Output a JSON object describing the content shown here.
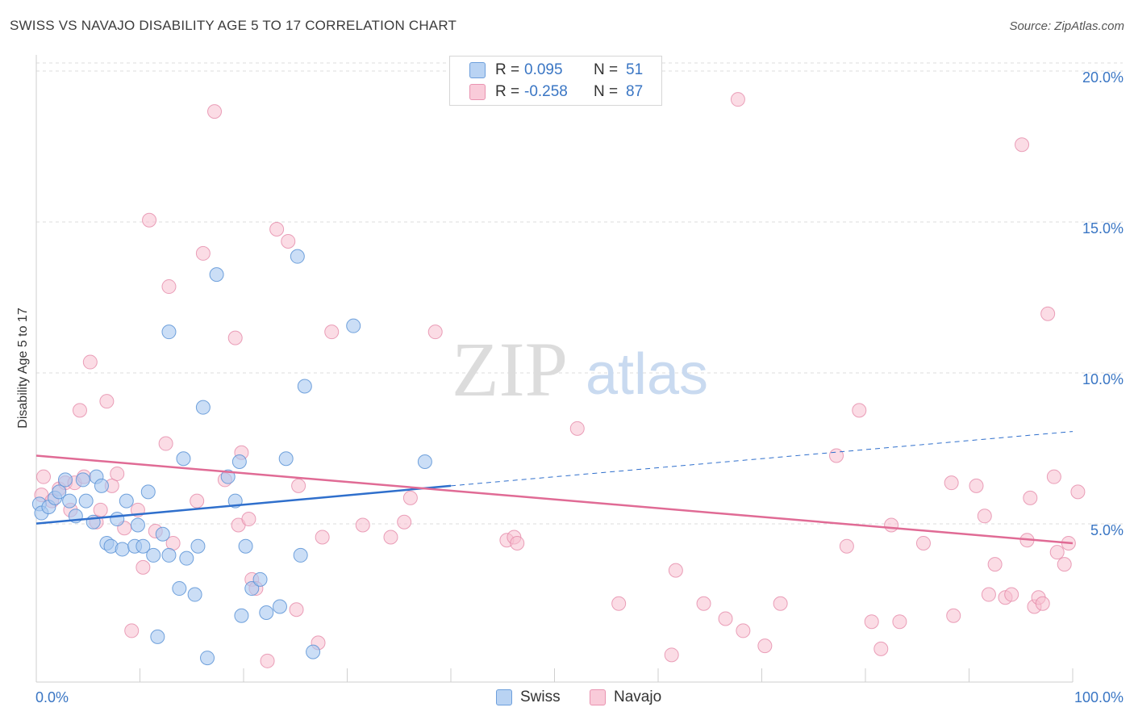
{
  "header": {
    "title": "SWISS VS NAVAJO DISABILITY AGE 5 TO 17 CORRELATION CHART",
    "source": "Source: ZipAtlas.com"
  },
  "watermark": {
    "zip": "ZIP",
    "atlas": "atlas"
  },
  "legend": {
    "series": [
      {
        "r_label": "R =",
        "r_value": "0.095",
        "n_label": "N =",
        "n_value": "51"
      },
      {
        "r_label": "R =",
        "r_value": "-0.258",
        "n_label": "N =",
        "n_value": "87"
      }
    ],
    "bottom": [
      "Swiss",
      "Navajo"
    ]
  },
  "colors": {
    "swiss_fill": "#a9c8f0",
    "swiss_stroke": "#5b93d6",
    "swiss_line": "#2f6fcc",
    "navajo_fill": "#f7bfd0",
    "navajo_stroke": "#e58aa9",
    "navajo_line": "#e06b95",
    "axis_label": "#3a76c4",
    "grid": "#dddddd"
  },
  "chart_data": {
    "type": "scatter",
    "ylabel": "Disability Age 5 to 17",
    "xlabel": "",
    "xlim": [
      0,
      100
    ],
    "ylim": [
      0,
      20
    ],
    "x_tick_labels": [
      "0.0%",
      "100.0%"
    ],
    "y_ticks": [
      5,
      10,
      15,
      20
    ],
    "y_tick_labels": [
      "5.0%",
      "10.0%",
      "15.0%",
      "20.0%"
    ],
    "grid": "dashed horizontal",
    "legend_position": "top-center",
    "series": [
      {
        "name": "Swiss",
        "R": 0.095,
        "N": 51,
        "trend": {
          "x0": 0,
          "y0": 5.25,
          "x1": 40,
          "y1": 6.5,
          "dashed_to_x": 100,
          "dashed_to_y": 8.3
        },
        "points": [
          [
            0.3,
            5.9
          ],
          [
            0.5,
            5.6
          ],
          [
            1.2,
            5.8
          ],
          [
            1.8,
            6.1
          ],
          [
            2.2,
            6.3
          ],
          [
            2.8,
            6.7
          ],
          [
            3.2,
            6.0
          ],
          [
            3.8,
            5.5
          ],
          [
            4.5,
            6.7
          ],
          [
            4.8,
            6.0
          ],
          [
            5.5,
            5.3
          ],
          [
            5.8,
            6.8
          ],
          [
            6.3,
            6.5
          ],
          [
            6.8,
            4.6
          ],
          [
            7.2,
            4.5
          ],
          [
            7.8,
            5.4
          ],
          [
            8.3,
            4.4
          ],
          [
            8.7,
            6.0
          ],
          [
            9.5,
            4.5
          ],
          [
            9.8,
            5.2
          ],
          [
            10.3,
            4.5
          ],
          [
            10.8,
            6.3
          ],
          [
            11.3,
            4.2
          ],
          [
            11.7,
            1.5
          ],
          [
            12.2,
            4.9
          ],
          [
            12.8,
            4.2
          ],
          [
            12.8,
            11.6
          ],
          [
            13.8,
            3.1
          ],
          [
            14.2,
            7.4
          ],
          [
            14.5,
            4.1
          ],
          [
            15.3,
            2.9
          ],
          [
            15.6,
            4.5
          ],
          [
            16.1,
            9.1
          ],
          [
            16.5,
            0.8
          ],
          [
            17.4,
            13.5
          ],
          [
            18.5,
            6.8
          ],
          [
            19.2,
            6.0
          ],
          [
            19.6,
            7.3
          ],
          [
            19.8,
            2.2
          ],
          [
            20.2,
            4.5
          ],
          [
            20.8,
            3.1
          ],
          [
            21.6,
            3.4
          ],
          [
            22.2,
            2.3
          ],
          [
            23.5,
            2.5
          ],
          [
            24.1,
            7.4
          ],
          [
            25.2,
            14.1
          ],
          [
            25.5,
            4.2
          ],
          [
            25.9,
            9.8
          ],
          [
            26.7,
            1.0
          ],
          [
            30.6,
            11.8
          ],
          [
            37.5,
            7.3
          ]
        ]
      },
      {
        "name": "Navajo",
        "R": -0.258,
        "N": 87,
        "trend": {
          "x0": 0,
          "y0": 7.5,
          "x1": 100,
          "y1": 4.6
        },
        "points": [
          [
            0.5,
            6.2
          ],
          [
            0.7,
            6.8
          ],
          [
            1.5,
            6.0
          ],
          [
            2.2,
            6.4
          ],
          [
            2.8,
            6.6
          ],
          [
            3.3,
            5.7
          ],
          [
            3.7,
            6.6
          ],
          [
            4.2,
            9.0
          ],
          [
            4.6,
            6.8
          ],
          [
            5.2,
            10.6
          ],
          [
            5.8,
            5.3
          ],
          [
            6.2,
            5.7
          ],
          [
            6.8,
            9.3
          ],
          [
            7.3,
            6.5
          ],
          [
            7.8,
            6.9
          ],
          [
            8.5,
            5.1
          ],
          [
            9.2,
            1.7
          ],
          [
            9.8,
            5.7
          ],
          [
            10.3,
            3.8
          ],
          [
            10.9,
            15.3
          ],
          [
            11.5,
            5.0
          ],
          [
            12.5,
            7.9
          ],
          [
            12.8,
            13.1
          ],
          [
            13.2,
            4.6
          ],
          [
            15.5,
            6.0
          ],
          [
            16.1,
            14.2
          ],
          [
            17.2,
            18.9
          ],
          [
            18.2,
            6.7
          ],
          [
            19.2,
            11.4
          ],
          [
            19.5,
            5.2
          ],
          [
            19.8,
            7.6
          ],
          [
            20.5,
            5.4
          ],
          [
            20.8,
            3.4
          ],
          [
            21.2,
            3.1
          ],
          [
            22.3,
            0.7
          ],
          [
            23.2,
            15.0
          ],
          [
            24.3,
            14.6
          ],
          [
            25.1,
            2.4
          ],
          [
            25.3,
            6.5
          ],
          [
            27.2,
            1.3
          ],
          [
            27.6,
            4.8
          ],
          [
            28.5,
            11.6
          ],
          [
            31.5,
            5.2
          ],
          [
            34.2,
            4.8
          ],
          [
            35.5,
            5.3
          ],
          [
            36.1,
            6.1
          ],
          [
            38.5,
            11.6
          ],
          [
            45.4,
            4.7
          ],
          [
            46.1,
            4.8
          ],
          [
            46.4,
            4.6
          ],
          [
            52.2,
            8.4
          ],
          [
            56.2,
            2.6
          ],
          [
            61.3,
            0.9
          ],
          [
            61.7,
            3.7
          ],
          [
            64.4,
            2.6
          ],
          [
            66.5,
            2.1
          ],
          [
            67.7,
            19.3
          ],
          [
            68.2,
            1.7
          ],
          [
            70.3,
            1.2
          ],
          [
            71.8,
            2.6
          ],
          [
            77.2,
            7.5
          ],
          [
            78.2,
            4.5
          ],
          [
            79.4,
            9.0
          ],
          [
            80.6,
            2.0
          ],
          [
            81.5,
            1.1
          ],
          [
            82.5,
            5.2
          ],
          [
            83.3,
            2.0
          ],
          [
            85.6,
            4.6
          ],
          [
            88.3,
            6.6
          ],
          [
            88.5,
            2.2
          ],
          [
            90.7,
            6.5
          ],
          [
            91.5,
            5.5
          ],
          [
            91.9,
            2.9
          ],
          [
            92.5,
            3.9
          ],
          [
            93.5,
            2.8
          ],
          [
            94.1,
            2.9
          ],
          [
            95.1,
            17.8
          ],
          [
            95.6,
            4.7
          ],
          [
            95.9,
            6.1
          ],
          [
            96.3,
            2.5
          ],
          [
            96.7,
            2.8
          ],
          [
            97.1,
            2.6
          ],
          [
            97.6,
            12.2
          ],
          [
            98.2,
            6.8
          ],
          [
            98.5,
            4.3
          ],
          [
            99.2,
            3.9
          ],
          [
            99.6,
            4.6
          ],
          [
            100.5,
            6.3
          ]
        ]
      }
    ]
  }
}
